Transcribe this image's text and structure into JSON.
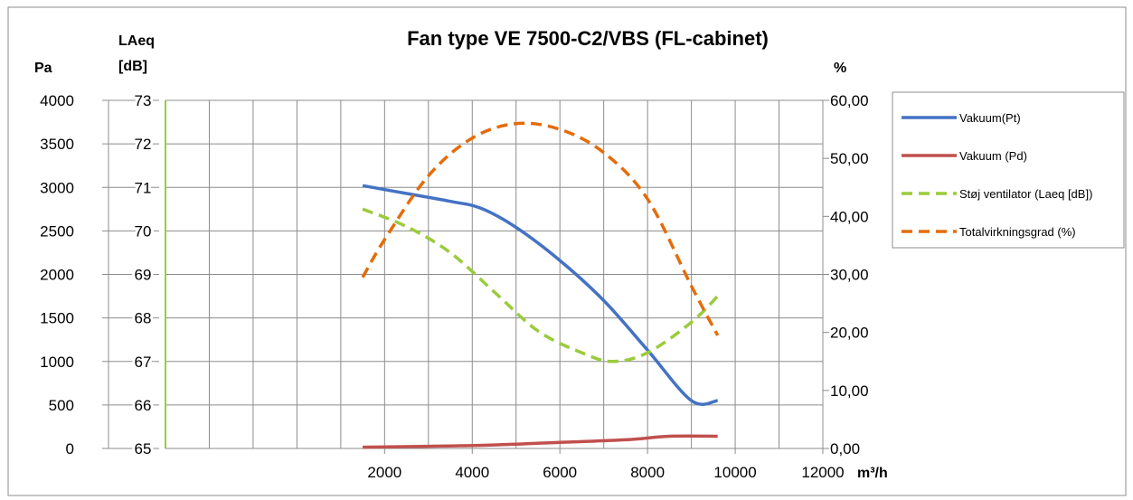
{
  "chart_data": {
    "type": "line",
    "title": "Fan type VE 7500-C2/VBS (FL-cabinet)",
    "xlabel": "m³/h",
    "x_ticks": [
      "2000",
      "4000",
      "6000",
      "8000",
      "10000",
      "12000"
    ],
    "xlim": [
      -3000,
      12000
    ],
    "axes": {
      "pa": {
        "label": "Pa",
        "range": [
          0,
          4000
        ],
        "ticks": [
          "0",
          "500",
          "1000",
          "1500",
          "2000",
          "2500",
          "3000",
          "3500",
          "4000"
        ]
      },
      "laeq": {
        "label_line1": "LAeq",
        "label_line2": "[dB]",
        "range": [
          65,
          73
        ],
        "ticks": [
          "65",
          "66",
          "67",
          "68",
          "69",
          "70",
          "71",
          "72",
          "73"
        ]
      },
      "pct": {
        "label": "%",
        "range": [
          0,
          60
        ],
        "ticks": [
          "0,00",
          "10,00",
          "20,00",
          "30,00",
          "40,00",
          "50,00",
          "60,00"
        ]
      }
    },
    "grid": true,
    "legend_position": "right",
    "series": [
      {
        "name": "Vakuum(Pt)",
        "axis": "pa",
        "color": "#4472C4",
        "dashed": false,
        "x": [
          1500,
          2500,
          3500,
          4200,
          5000,
          6000,
          7000,
          8000,
          9000,
          9600
        ],
        "y": [
          3020,
          2930,
          2840,
          2760,
          2540,
          2160,
          1700,
          1130,
          550,
          550
        ]
      },
      {
        "name": "Vakuum (Pd)",
        "axis": "pa",
        "color": "#C0504D",
        "dashed": false,
        "x": [
          1500,
          3000,
          4500,
          6000,
          7500,
          8500,
          9600
        ],
        "y": [
          15,
          25,
          40,
          70,
          100,
          140,
          140
        ]
      },
      {
        "name": "Støj ventilator (Laeq [dB])",
        "axis": "laeq",
        "color": "#9BCB3C",
        "dashed": true,
        "x": [
          1500,
          2500,
          3500,
          4500,
          5500,
          6500,
          7200,
          8000,
          9000,
          9600
        ],
        "y": [
          70.5,
          70.1,
          69.5,
          68.6,
          67.7,
          67.2,
          67.0,
          67.2,
          67.9,
          68.5
        ]
      },
      {
        "name": "Totalvirkningsgrad (%)",
        "axis": "pct",
        "color": "#E46C0A",
        "dashed": true,
        "x": [
          1500,
          2000,
          3000,
          4000,
          5000,
          6000,
          7000,
          8000,
          9000,
          9600
        ],
        "y": [
          29.5,
          36,
          47,
          53.5,
          56,
          55,
          51,
          43,
          28,
          19.5
        ]
      }
    ]
  }
}
